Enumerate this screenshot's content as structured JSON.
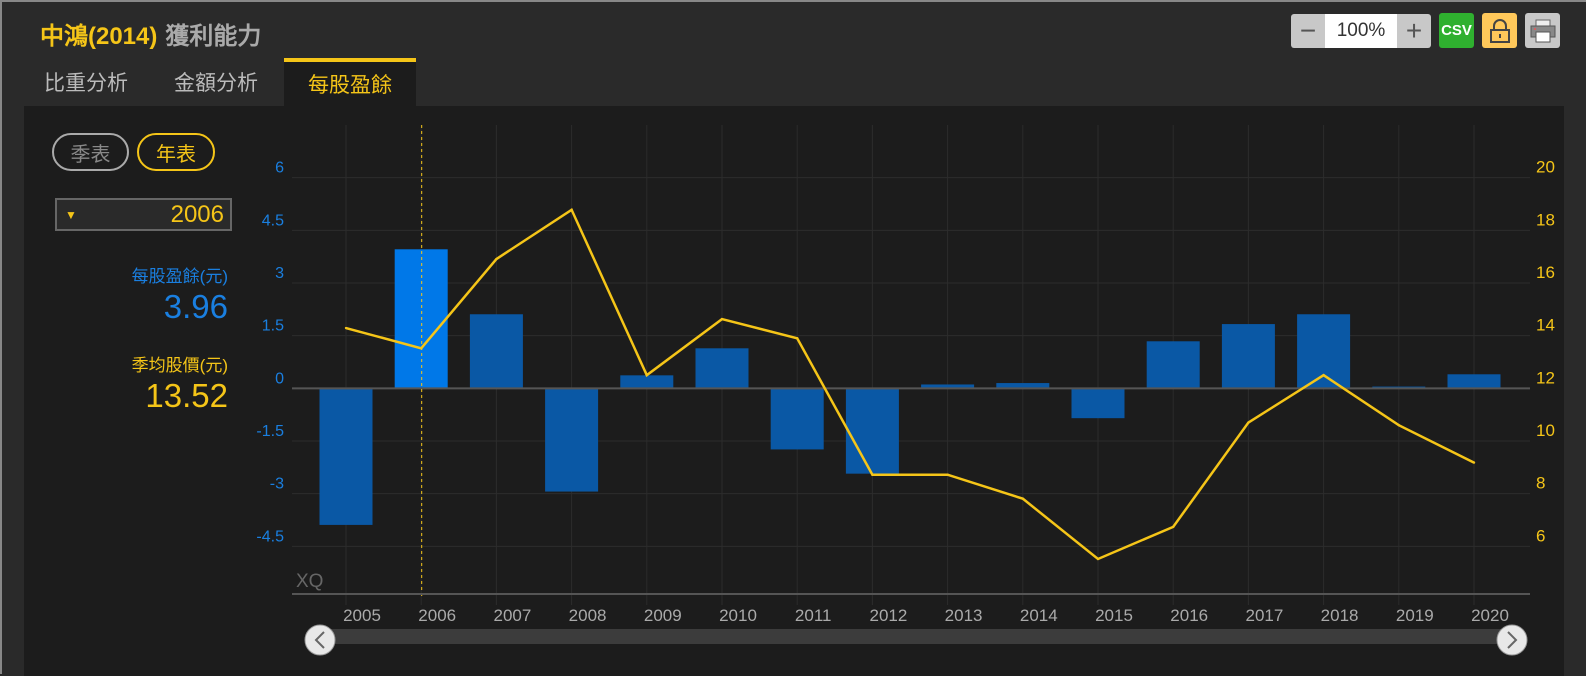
{
  "header": {
    "stock": "中鴻(2014)",
    "title": "獲利能力"
  },
  "toolbar": {
    "zoom_out": "−",
    "zoom_value": "100%",
    "zoom_in": "+",
    "csv": "CSV"
  },
  "tabs": [
    {
      "label": "比重分析"
    },
    {
      "label": "金額分析"
    },
    {
      "label": "每股盈餘",
      "active": true
    }
  ],
  "period": {
    "quarterly": "季表",
    "annual": "年表",
    "selected": "annual"
  },
  "year_select": {
    "value": "2006",
    "arrow": "▼"
  },
  "readout": {
    "eps_label": "每股盈餘(元)",
    "eps_value": "3.96",
    "price_label": "季均股價(元)",
    "price_value": "13.52"
  },
  "colors": {
    "eps": "#0a58a5",
    "eps_selected": "#0078e8",
    "price": "#f5c518",
    "left_axis": "#1a7fe0"
  },
  "chart_data": {
    "type": "bar+line",
    "categories": [
      "2005",
      "2006",
      "2007",
      "2008",
      "2009",
      "2010",
      "2011",
      "2012",
      "2013",
      "2014",
      "2015",
      "2016",
      "2017",
      "2018",
      "2019",
      "2020"
    ],
    "series": [
      {
        "name": "每股盈餘(元)",
        "type": "bar",
        "axis": "left",
        "values": [
          -3.89,
          3.96,
          2.11,
          -2.94,
          0.37,
          1.14,
          -1.74,
          -2.43,
          0.11,
          0.15,
          -0.85,
          1.34,
          1.83,
          2.11,
          0.05,
          0.4
        ]
      },
      {
        "name": "季均股價(元)",
        "type": "line",
        "axis": "right",
        "values": [
          14.29,
          13.52,
          16.91,
          18.78,
          12.5,
          14.63,
          13.9,
          8.72,
          8.72,
          7.81,
          5.52,
          6.74,
          10.7,
          12.5,
          10.6,
          9.18
        ]
      }
    ],
    "selected": "2006",
    "left_ticks": [
      "-4.5",
      "-3",
      "-1.5",
      "0",
      "1.5",
      "3",
      "4.5",
      "6"
    ],
    "right_ticks": [
      "6",
      "8",
      "10",
      "12",
      "14",
      "16",
      "18",
      "20"
    ],
    "ylim_left": [
      -6,
      7.5
    ],
    "ylim_right": [
      4,
      22
    ],
    "watermark": "XQ",
    "grid": true
  }
}
